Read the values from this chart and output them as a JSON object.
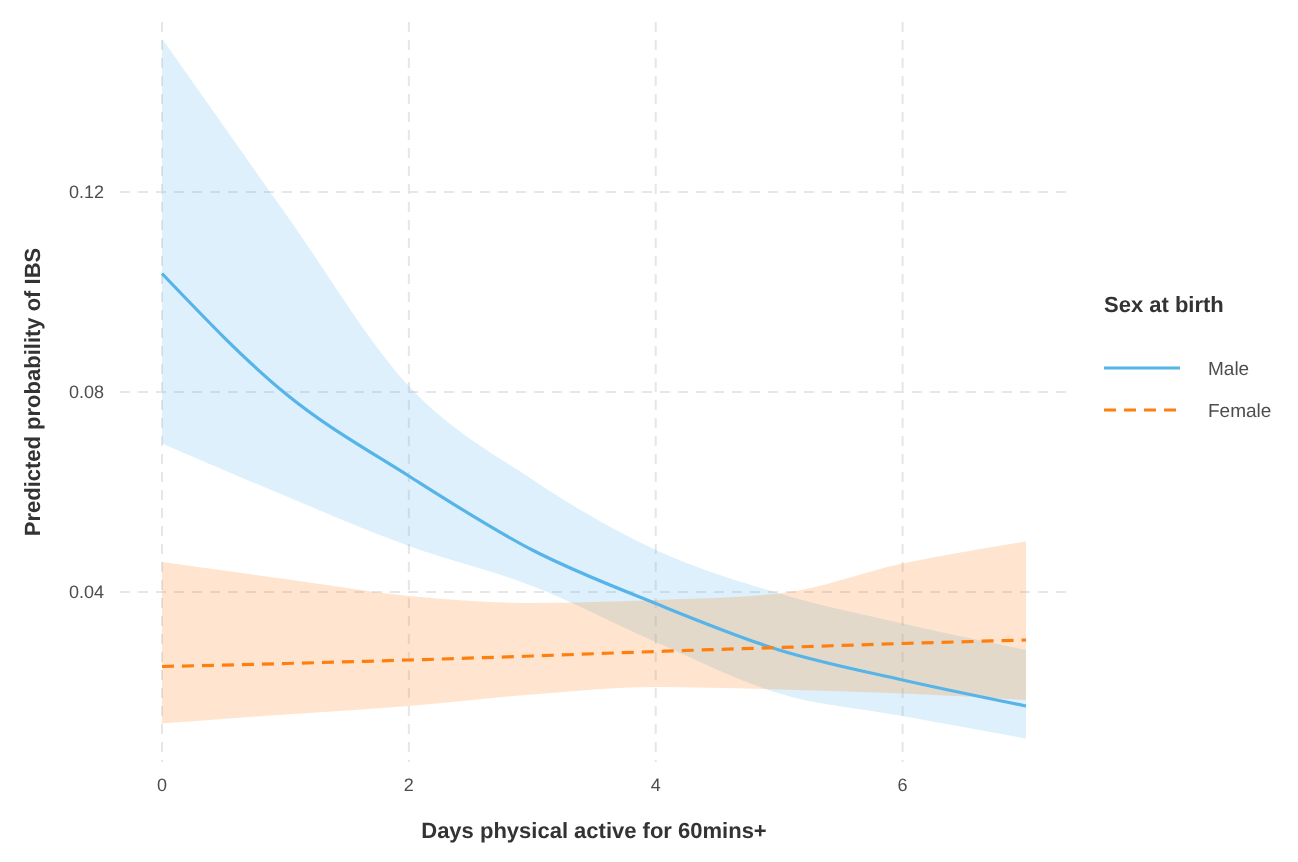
{
  "chart_data": {
    "type": "line",
    "xlabel": "Days physical active for 60mins+",
    "ylabel": "Predicted probability of IBS",
    "legend_title": "Sex at birth",
    "legend": "right",
    "grid": true,
    "marker": "none",
    "x": [
      0,
      1,
      2,
      3,
      4,
      5,
      6,
      7
    ],
    "xlim": [
      -0.34,
      7.34
    ],
    "xticks": [
      0,
      2,
      4,
      6
    ],
    "ylim": [
      0.006,
      0.154
    ],
    "yticks": [
      0.04,
      0.08,
      0.12
    ],
    "series": [
      {
        "name": "Male",
        "color": "#56b4e9",
        "line_style": "solid",
        "values": [
          0.1037,
          0.0797,
          0.0632,
          0.0484,
          0.0377,
          0.0284,
          0.0224,
          0.0172
        ],
        "lower": [
          0.0697,
          0.0592,
          0.0492,
          0.0412,
          0.03,
          0.0197,
          0.0152,
          0.0107
        ],
        "upper": [
          0.1507,
          0.1157,
          0.0812,
          0.0625,
          0.0484,
          0.0397,
          0.0337,
          0.0284
        ]
      },
      {
        "name": "Female",
        "color": "#ff7f0e",
        "line_style": "dashed",
        "values": [
          0.0251,
          0.0257,
          0.0264,
          0.0272,
          0.0281,
          0.0289,
          0.0297,
          0.0304
        ],
        "lower": [
          0.0137,
          0.0155,
          0.0172,
          0.0195,
          0.021,
          0.0205,
          0.0197,
          0.0184
        ],
        "upper": [
          0.046,
          0.0426,
          0.0392,
          0.0378,
          0.0384,
          0.0397,
          0.0457,
          0.0501
        ]
      }
    ]
  }
}
